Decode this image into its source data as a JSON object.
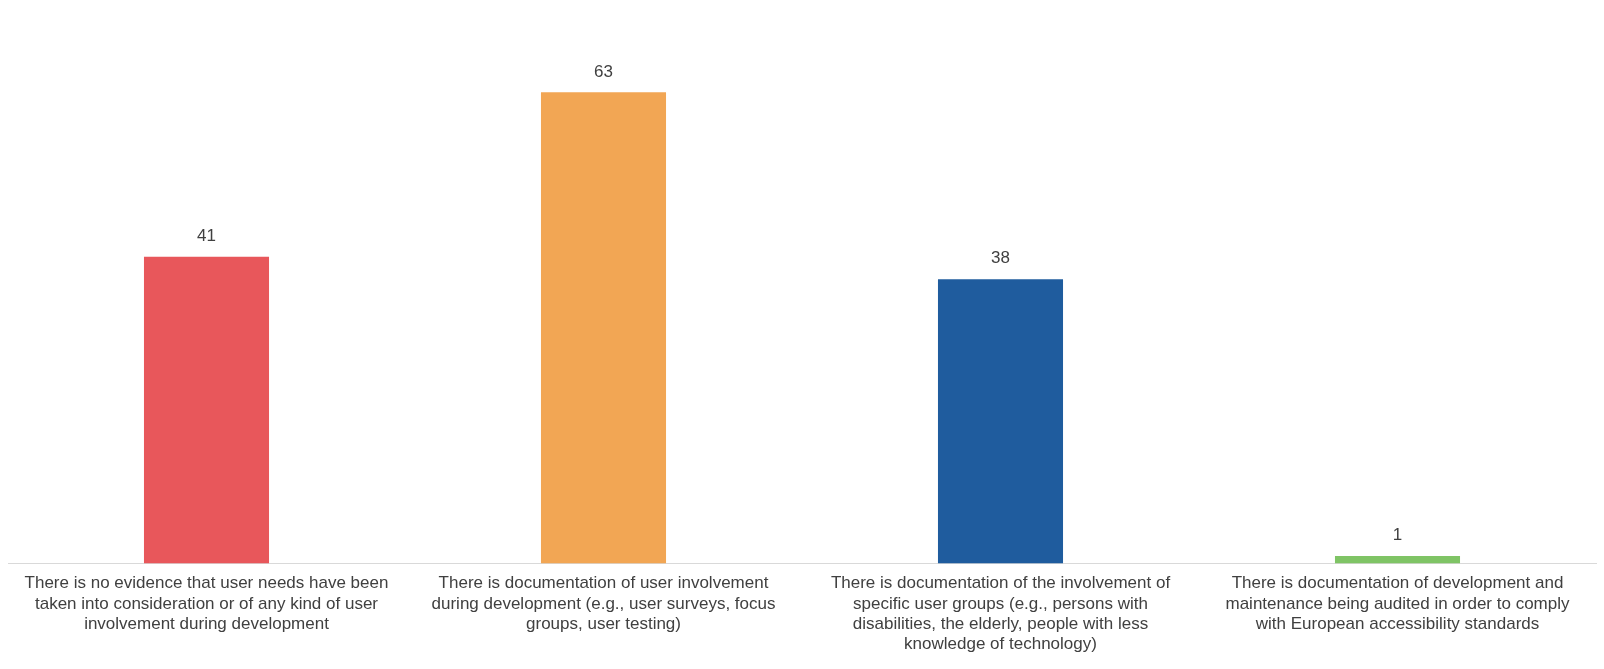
{
  "chart_data": {
    "type": "bar",
    "categories": [
      "There is no evidence that user needs have been taken into consideration or of any kind of user involvement during development",
      "There is documentation of user involvement during development (e.g., user surveys, focus groups, user testing)",
      "There is documentation of the involvement of specific user groups (e.g., persons with disabilities, the elderly, people with less knowledge of technology)",
      "There is documentation of development and maintenance being audited in order to comply with European accessibility standards"
    ],
    "values": [
      41,
      63,
      38,
      1
    ],
    "colors": [
      "#e8575b",
      "#f2a654",
      "#1f5c9e",
      "#7fc465"
    ],
    "data_labels": true,
    "grid": false,
    "legend": false
  }
}
